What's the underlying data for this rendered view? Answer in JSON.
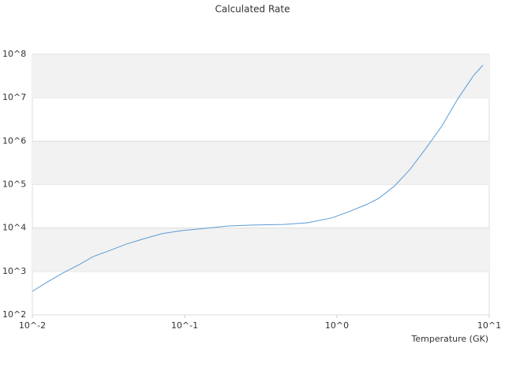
{
  "chart_data": {
    "type": "line",
    "title": "Calculated Rate",
    "x_label": "Temperature (GK)",
    "x": [
      0.01,
      0.0126,
      0.0158,
      0.0204,
      0.025,
      0.0326,
      0.0414,
      0.0525,
      0.0707,
      0.095,
      0.136,
      0.195,
      0.279,
      0.447,
      0.64,
      0.92,
      1.17,
      1.57,
      1.88,
      2.39,
      3.02,
      3.85,
      4.89,
      6.2,
      7.87,
      9.08
    ],
    "series": [
      {
        "color": "#5b9bd5",
        "values": [
          350,
          575,
          910,
          1450,
          2190,
          3090,
          4270,
          5500,
          7400,
          8700,
          9800,
          11200,
          11700,
          12100,
          13200,
          17000,
          23000,
          35000,
          48000,
          93000,
          224000,
          690000,
          2240000,
          9300000,
          32000000,
          56000000
        ]
      }
    ],
    "xscale": "log",
    "yscale": "log",
    "xlim": [
      0.01,
      10
    ],
    "ylim": [
      100,
      100000000
    ],
    "xticks": [
      {
        "value": 0.01,
        "label": "10^-2"
      },
      {
        "value": 0.1,
        "label": "10^-1"
      },
      {
        "value": 1,
        "label": "10^0"
      },
      {
        "value": 10,
        "label": "10^1"
      }
    ],
    "yticks": [
      {
        "value": 100,
        "label": "10^2"
      },
      {
        "value": 1000,
        "label": "10^3"
      },
      {
        "value": 10000,
        "label": "10^4"
      },
      {
        "value": 100000,
        "label": "10^5"
      },
      {
        "value": 1000000,
        "label": "10^6"
      },
      {
        "value": 10000000,
        "label": "10^7"
      },
      {
        "value": 100000000,
        "label": "10^8"
      }
    ],
    "grid": true
  }
}
